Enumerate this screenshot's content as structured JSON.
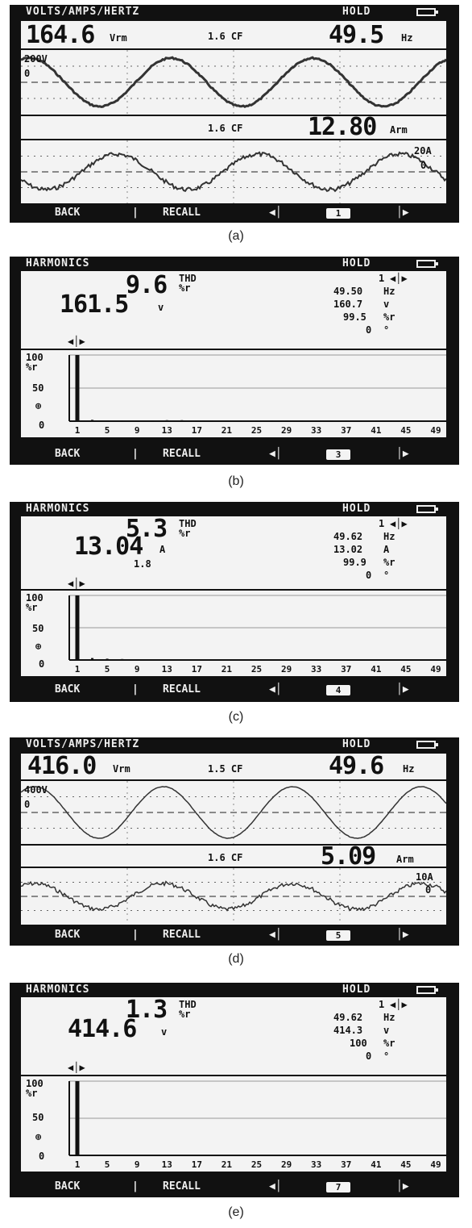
{
  "screens": [
    {
      "id": "a",
      "caption": "(a)",
      "title": "VOLTS/AMPS/HERTZ",
      "hold": "HOLD",
      "reading1": {
        "value": "164.6",
        "unit": "Vrm",
        "cf": "1.6 CF",
        "freq": "49.5",
        "freq_unit": "Hz"
      },
      "trace1": {
        "scale": "200V",
        "zero": "0"
      },
      "reading2": {
        "cf": "1.6 CF",
        "value": "12.80",
        "unit": "Arm"
      },
      "trace2": {
        "scale": "20A",
        "zero": "0"
      },
      "softkeys": {
        "back": "BACK",
        "sep": "|",
        "recall": "RECALL",
        "page": "1"
      }
    },
    {
      "id": "b",
      "caption": "(b)",
      "title": "HARMONICS",
      "hold": "HOLD",
      "thd": {
        "value": "9.6",
        "label1": "THD",
        "label2": "%r"
      },
      "main": {
        "value": "161.5",
        "unit": "v"
      },
      "right": {
        "order": "1",
        "freq": "49.50",
        "freq_unit": "Hz",
        "val": "160.7",
        "val_unit": "v",
        "pct": "99.5",
        "pct_unit": "%r",
        "phase": "0",
        "phase_unit": "°"
      },
      "axis": {
        "y": [
          "100",
          "%r",
          "50",
          "0"
        ],
        "x": [
          "1",
          "5",
          "9",
          "13",
          "17",
          "21",
          "25",
          "29",
          "33",
          "37",
          "41",
          "45",
          "49"
        ]
      },
      "bars": [
        100,
        2,
        1,
        0.5,
        1,
        1,
        1.5,
        1.5,
        1,
        1,
        1,
        1,
        0.5,
        0.5,
        0.5,
        0.5,
        0.5,
        0.5,
        0.5,
        0.5,
        0.5,
        0.3,
        0.3,
        0.3,
        0.2
      ],
      "softkeys": {
        "back": "BACK",
        "sep": "|",
        "recall": "RECALL",
        "page": "3"
      }
    },
    {
      "id": "c",
      "caption": "(c)",
      "title": "HARMONICS",
      "hold": "HOLD",
      "thd": {
        "value": "5.3",
        "label1": "THD",
        "label2": "%r"
      },
      "main": {
        "value": "13.04",
        "unit": "A",
        "extra": "1.8"
      },
      "right": {
        "order": "1",
        "freq": "49.62",
        "freq_unit": "Hz",
        "val": "13.02",
        "val_unit": "A",
        "pct": "99.9",
        "pct_unit": "%r",
        "phase": "0",
        "phase_unit": "°"
      },
      "axis": {
        "y": [
          "100",
          "%r",
          "50",
          "0"
        ],
        "x": [
          "1",
          "5",
          "9",
          "13",
          "17",
          "21",
          "25",
          "29",
          "33",
          "37",
          "41",
          "45",
          "49"
        ]
      },
      "bars": [
        100,
        3,
        2,
        1.5,
        1,
        0,
        0,
        0,
        0,
        0,
        0,
        0,
        0,
        0,
        0,
        0,
        0,
        0,
        0,
        0,
        0,
        0,
        0,
        0,
        0
      ],
      "softkeys": {
        "back": "BACK",
        "sep": "|",
        "recall": "RECALL",
        "page": "4"
      }
    },
    {
      "id": "d",
      "caption": "(d)",
      "title": "VOLTS/AMPS/HERTZ",
      "hold": "HOLD",
      "reading1": {
        "value": "416.0",
        "unit": "Vrm",
        "cf": "1.5 CF",
        "freq": "49.6",
        "freq_unit": "Hz"
      },
      "trace1": {
        "scale": "400V",
        "zero": "0"
      },
      "reading2": {
        "cf": "1.6 CF",
        "value": "5.09",
        "unit": "Arm"
      },
      "trace2": {
        "scale": "10A",
        "zero": "0"
      },
      "softkeys": {
        "back": "BACK",
        "sep": "|",
        "recall": "RECALL",
        "page": "5"
      }
    },
    {
      "id": "e",
      "caption": "(e)",
      "title": "HARMONICS",
      "hold": "HOLD",
      "thd": {
        "value": "1.3",
        "label1": "THD",
        "label2": "%r"
      },
      "main": {
        "value": "414.6",
        "unit": "v"
      },
      "right": {
        "order": "1",
        "freq": "49.62",
        "freq_unit": "Hz",
        "val": "414.3",
        "val_unit": "v",
        "pct": "100",
        "pct_unit": "%r",
        "phase": "0",
        "phase_unit": "°"
      },
      "axis": {
        "y": [
          "100",
          "%r",
          "50",
          "0"
        ],
        "x": [
          "1",
          "5",
          "9",
          "13",
          "17",
          "21",
          "25",
          "29",
          "33",
          "37",
          "41",
          "45",
          "49"
        ]
      },
      "bars": [
        100,
        0,
        0,
        0,
        0,
        0,
        0,
        0,
        0,
        0,
        0,
        0,
        0,
        0,
        0,
        0,
        0,
        0,
        0,
        0,
        0,
        0,
        0,
        0,
        0
      ],
      "softkeys": {
        "back": "BACK",
        "sep": "|",
        "recall": "RECALL",
        "page": "7"
      }
    }
  ]
}
